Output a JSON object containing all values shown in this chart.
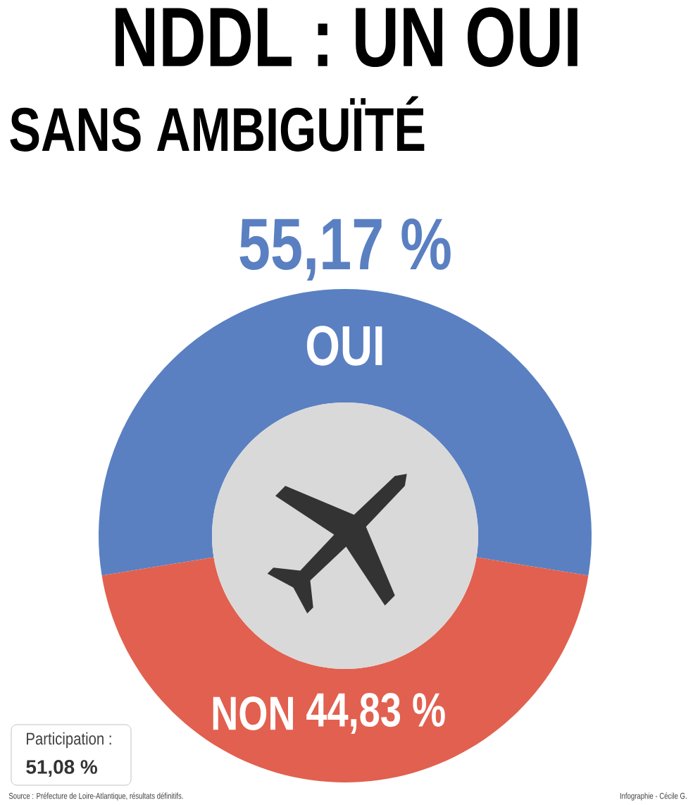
{
  "chart_data": {
    "type": "donut",
    "title": "NDDL : UN OUI",
    "subtitle": "SANS AMBIGUÏTÉ",
    "categories": [
      "OUI",
      "NON"
    ],
    "values": [
      55.17,
      44.83
    ],
    "value_labels": [
      "55,17 %",
      "44,83 %"
    ],
    "colors": [
      "#5a80c2",
      "#e2604f"
    ],
    "annotations": [
      "Participation :",
      "51,08 %",
      "Source : Préfecture de Loire-Atlantique, résultats définitifs.",
      "Infographie - Cécile G."
    ]
  }
}
